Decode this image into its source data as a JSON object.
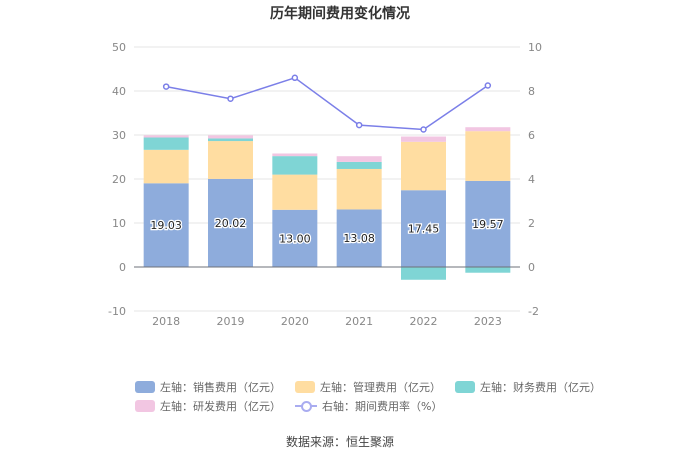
{
  "title": "历年期间费用变化情况",
  "source": "数据来源：恒生聚源",
  "legend": [
    {
      "label": "左轴：销售费用（亿元）",
      "color": "#8EACDC",
      "kind": "box"
    },
    {
      "label": "左轴：管理费用（亿元）",
      "color": "#FFDDA1",
      "kind": "box"
    },
    {
      "label": "左轴：财务费用（亿元）",
      "color": "#7FD5D5",
      "kind": "box"
    },
    {
      "label": "左轴：研发费用（亿元）",
      "color": "#F2C6E2",
      "kind": "box"
    },
    {
      "label": "右轴：期间费用率（%）",
      "color": "#7B7FE8",
      "kind": "line"
    }
  ],
  "chart_data": {
    "type": "bar",
    "stacked": true,
    "categories": [
      "2018",
      "2019",
      "2020",
      "2021",
      "2022",
      "2023"
    ],
    "series": [
      {
        "name": "左轴：销售费用（亿元）",
        "axis": "left",
        "color": "#8EACDC",
        "values": [
          19.03,
          20.02,
          13.0,
          13.08,
          17.45,
          19.57
        ],
        "labels": [
          "19.03",
          "20.02",
          "13.00",
          "13.08",
          "17.45",
          "19.57"
        ]
      },
      {
        "name": "左轴：管理费用（亿元）",
        "axis": "left",
        "color": "#FFDDA1",
        "values": [
          7.6,
          8.6,
          8.0,
          9.2,
          11.0,
          11.3
        ]
      },
      {
        "name": "左轴：财务费用（亿元）",
        "axis": "left",
        "color": "#7FD5D5",
        "values": [
          2.8,
          0.6,
          4.2,
          1.6,
          -2.9,
          -1.3
        ]
      },
      {
        "name": "左轴：研发费用（亿元）",
        "axis": "left",
        "color": "#F2C6E2",
        "values": [
          0.5,
          0.7,
          0.6,
          1.3,
          1.2,
          0.9
        ]
      },
      {
        "name": "右轴：期间费用率（%）",
        "axis": "right",
        "type": "line",
        "color": "#7B7FE8",
        "values": [
          8.2,
          7.65,
          8.6,
          6.45,
          6.25,
          8.25
        ]
      }
    ],
    "left_axis": {
      "ylim": [
        -10,
        50
      ],
      "ticks": [
        "-10",
        "0",
        "10",
        "20",
        "30",
        "40",
        "50"
      ]
    },
    "right_axis": {
      "ylim": [
        -2,
        10
      ],
      "ticks": [
        "-2",
        "0",
        "2",
        "4",
        "6",
        "8",
        "10"
      ]
    },
    "grid": true,
    "legend_position": "bottom"
  }
}
